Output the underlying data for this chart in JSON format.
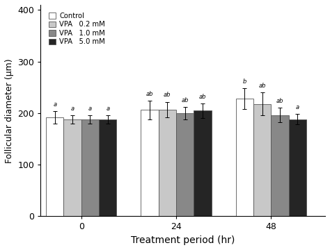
{
  "groups": [
    "0",
    "24",
    "48"
  ],
  "series": [
    "Control",
    "VPA   0.2 mM",
    "VPA   1.0 mM",
    "VPA   5.0 mM"
  ],
  "bar_colors": [
    "#ffffff",
    "#c8c8c8",
    "#888888",
    "#252525"
  ],
  "bar_edgecolors": [
    "#555555",
    "#555555",
    "#555555",
    "#555555"
  ],
  "values": [
    [
      192,
      188,
      188,
      188
    ],
    [
      206,
      207,
      200,
      205
    ],
    [
      228,
      218,
      196,
      188
    ]
  ],
  "errors": [
    [
      12,
      8,
      8,
      8
    ],
    [
      18,
      15,
      12,
      14
    ],
    [
      20,
      22,
      14,
      10
    ]
  ],
  "annotations": [
    [
      "a",
      "a",
      "a",
      "a"
    ],
    [
      "ab",
      "ab",
      "ab",
      "ab"
    ],
    [
      "b",
      "ab",
      "ab",
      "a"
    ]
  ],
  "ylabel": "Follicular diameter (μm)",
  "xlabel": "Treatment period (hr)",
  "ylim": [
    0,
    410
  ],
  "yticks": [
    0,
    100,
    200,
    300,
    400
  ],
  "bar_width": 0.13,
  "group_centers": [
    0.3,
    1.0,
    1.7
  ],
  "x_lim": [
    0.0,
    2.1
  ],
  "legend_loc": "upper left",
  "background_color": "#ffffff",
  "figsize": [
    4.74,
    3.6
  ],
  "dpi": 100
}
